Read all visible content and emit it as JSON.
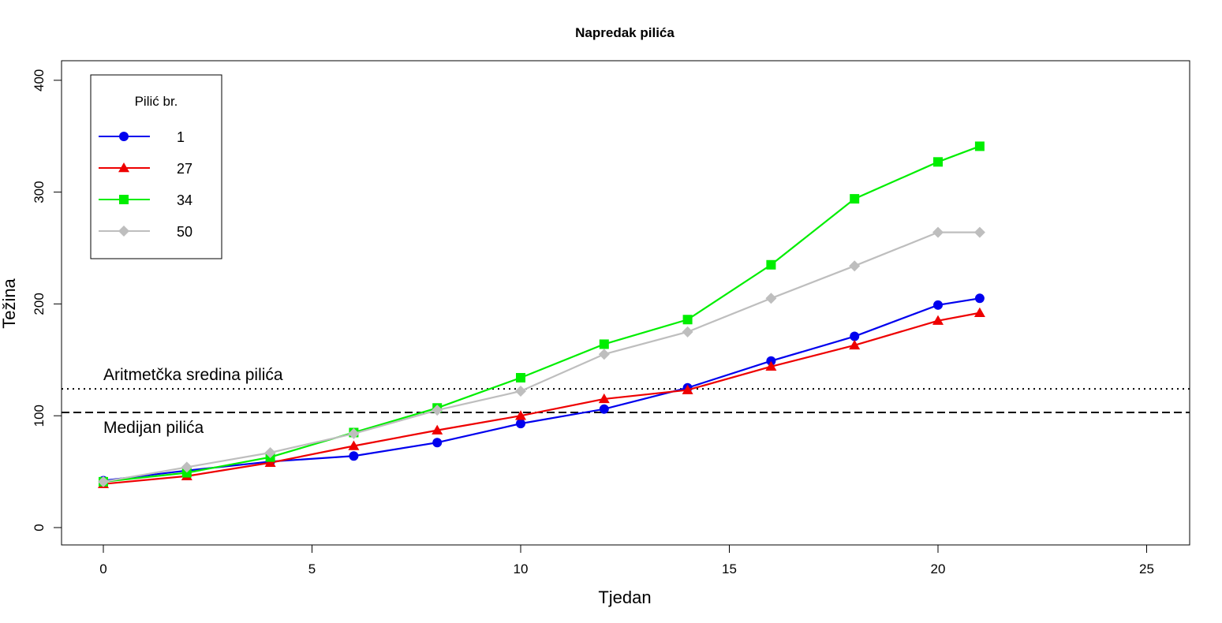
{
  "chart_data": {
    "type": "line",
    "title": "Napredak pilića",
    "xlabel": "Tjedan",
    "ylabel": "Težina",
    "xlim": [
      -1,
      26
    ],
    "ylim": [
      -16,
      400
    ],
    "x_ticks": [
      "0",
      "5",
      "10",
      "15",
      "20",
      "25"
    ],
    "y_ticks": [
      "0",
      "100",
      "200",
      "300",
      "400"
    ],
    "x_tick_values": [
      0,
      5,
      10,
      15,
      20,
      25
    ],
    "y_tick_values": [
      0,
      100,
      200,
      300,
      400
    ],
    "x": [
      0,
      2,
      4,
      6,
      8,
      10,
      12,
      14,
      16,
      18,
      20,
      21
    ],
    "legend": {
      "title": "Pilić br.",
      "position": "top-left"
    },
    "series": [
      {
        "name": "1",
        "color": "#0000ee",
        "marker": "circle",
        "values": [
          42,
          51,
          59,
          64,
          76,
          93,
          106,
          125,
          149,
          171,
          199,
          205
        ]
      },
      {
        "name": "27",
        "color": "#ee0000",
        "marker": "triangle",
        "values": [
          39,
          46,
          58,
          73,
          87,
          100,
          115,
          123,
          144,
          163,
          185,
          192
        ]
      },
      {
        "name": "34",
        "color": "#00ee00",
        "marker": "square",
        "values": [
          41,
          49,
          63,
          85,
          107,
          134,
          164,
          186,
          235,
          294,
          327,
          341
        ]
      },
      {
        "name": "50",
        "color": "#bebebe",
        "marker": "diamond",
        "values": [
          41,
          54,
          67,
          84,
          105,
          122,
          155,
          175,
          205,
          234,
          264,
          264
        ]
      }
    ],
    "reference_lines": [
      {
        "label": "Aritmetčka sredina pilića",
        "value": 124,
        "style": "dotted"
      },
      {
        "label": "Medijan pilića",
        "value": 103,
        "style": "dashed"
      }
    ],
    "grid": false
  }
}
